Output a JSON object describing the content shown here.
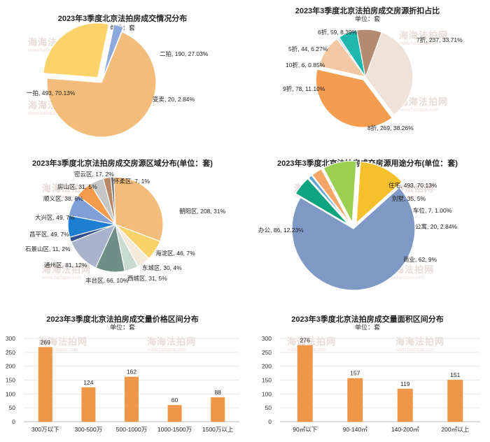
{
  "watermark": {
    "text": "海海法拍网",
    "url": "www.haifapai.com"
  },
  "chart_data": [
    {
      "id": "p1",
      "type": "pie",
      "title": "2023年3季度北京法拍房成交情况分布",
      "subtitle": "单位：套",
      "slices": [
        {
          "label": "一拍",
          "value": 493,
          "pct": "70.13%",
          "color": "#f3bc7a"
        },
        {
          "label": "二拍",
          "value": 190,
          "pct": "27.03%",
          "color": "#fbd36a"
        },
        {
          "label": "变卖",
          "value": 20,
          "pct": "2.84%",
          "color": "#8eaadc"
        }
      ]
    },
    {
      "id": "p2",
      "type": "pie",
      "title": "2023年3季度北京法拍房成交房源折扣占比",
      "subtitle": "单位：套",
      "slices": [
        {
          "label": "7折",
          "value": 237,
          "pct": "33.71%",
          "color": "#efe3d9"
        },
        {
          "label": "8折",
          "value": 269,
          "pct": "38.26%",
          "color": "#f49c50"
        },
        {
          "label": "9折",
          "value": 78,
          "pct": "11.10%",
          "color": "#f3c7a1"
        },
        {
          "label": "10折",
          "value": 6,
          "pct": "0.85%",
          "color": "#cfe3f3"
        },
        {
          "label": "5折",
          "value": 44,
          "pct": "6.27%",
          "color": "#1fb8ae"
        },
        {
          "label": "6折",
          "value": 59,
          "pct": "8.39%",
          "color": "#b48a70"
        }
      ]
    },
    {
      "id": "p3",
      "type": "pie",
      "title": "2023年3季度北京法拍房成交房源区域分布(单位：套)",
      "subtitle": "",
      "slices": [
        {
          "label": "朝阳区",
          "value": 208,
          "pct": "31%",
          "color": "#f3bc7a"
        },
        {
          "label": "海淀区",
          "value": 46,
          "pct": "7%",
          "color": "#fad26a"
        },
        {
          "label": "东城区",
          "value": 30,
          "pct": "4%",
          "color": "#f3eadb"
        },
        {
          "label": "西城区",
          "value": 31,
          "pct": "5%",
          "color": "#c9dbcf"
        },
        {
          "label": "丰台区",
          "value": 66,
          "pct": "10%",
          "color": "#6f8e86"
        },
        {
          "label": "通州区",
          "value": 81,
          "pct": "12%",
          "color": "#a9b4cc"
        },
        {
          "label": "石景山区",
          "value": 11,
          "pct": "2%",
          "color": "#2f4f8f"
        },
        {
          "label": "昌平区",
          "value": 49,
          "pct": "7%",
          "color": "#1e7fd0"
        },
        {
          "label": "大兴区",
          "value": 49,
          "pct": "7%",
          "color": "#7f9fd6"
        },
        {
          "label": "顺义区",
          "value": 38,
          "pct": "6%",
          "color": "#f39b4a"
        },
        {
          "label": "房山区",
          "value": 31,
          "pct": "5%",
          "color": "#c6c6c6"
        },
        {
          "label": "密云区",
          "value": 17,
          "pct": "2%",
          "color": "#b98766"
        },
        {
          "label": "怀柔区",
          "value": 7,
          "pct": "1%",
          "color": "#6c6c6c"
        }
      ]
    },
    {
      "id": "p4",
      "type": "pie",
      "title": "2023年3季度北京法拍房成交房源用途分布(单位：套)",
      "subtitle": "",
      "slices": [
        {
          "label": "住宅",
          "value": 493,
          "pct": "70.13%",
          "color": "#7f99c7"
        },
        {
          "label": "别墅",
          "value": 35,
          "pct": "5%",
          "color": "#0fa37f"
        },
        {
          "label": "车位",
          "value": 7,
          "pct": "1.00%",
          "color": "#5ea6d8"
        },
        {
          "label": "公寓",
          "value": 20,
          "pct": "2.84%",
          "color": "#f4a667"
        },
        {
          "label": "商业",
          "value": 62,
          "pct": "9%",
          "color": "#9bcf52"
        },
        {
          "label": "办公",
          "value": 86,
          "pct": "12.23%",
          "color": "#f4c12d"
        }
      ]
    },
    {
      "id": "b1",
      "type": "bar",
      "title": "2023年3季度北京法拍房成交量价格区间分布",
      "subtitle": "单位：套",
      "categories": [
        "300万以下",
        "300-500万",
        "500-1000万",
        "1000-1500万",
        "1500万以上"
      ],
      "values": [
        269,
        124,
        162,
        60,
        88
      ],
      "ylim": [
        0,
        300
      ],
      "yticks": [
        0,
        50,
        100,
        150,
        200,
        250,
        300
      ],
      "color": "#ef9748"
    },
    {
      "id": "b2",
      "type": "bar",
      "title": "2023年3季度北京法拍房成交量面积区间分布",
      "subtitle": "单位：套",
      "categories": [
        "90㎡以下",
        "90-140㎡",
        "140-200㎡",
        "200㎡以上"
      ],
      "values": [
        276,
        157,
        119,
        151
      ],
      "ylim": [
        0,
        300
      ],
      "yticks": [
        0,
        50,
        100,
        150,
        200,
        250,
        300
      ],
      "color": "#ef9748"
    }
  ]
}
